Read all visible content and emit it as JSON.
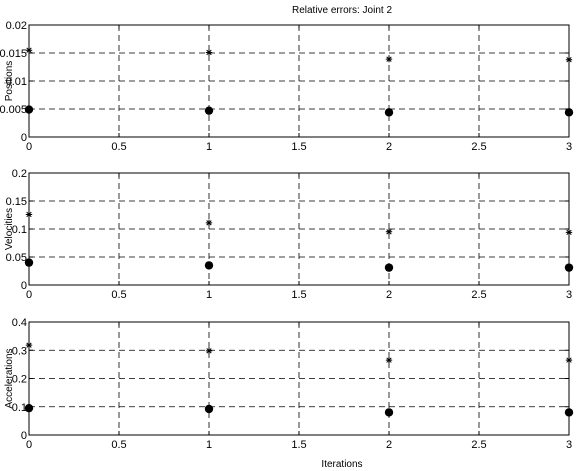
{
  "figure": {
    "title": "Relative errors: Joint 2",
    "xlabel": "Iterations"
  },
  "chart_data": [
    {
      "type": "scatter",
      "title": "Relative errors: Joint 2",
      "xlabel": "",
      "ylabel": "Positions",
      "xlim": [
        0,
        3
      ],
      "ylim": [
        0,
        0.02
      ],
      "x_ticks": [
        0,
        0.5,
        1,
        1.5,
        2,
        2.5,
        3
      ],
      "x_tick_labels": [
        "0",
        "0.5",
        "1",
        "1.5",
        "2",
        "2.5",
        "3"
      ],
      "y_ticks": [
        0,
        0.005,
        0.01,
        0.015,
        0.02
      ],
      "y_tick_labels": [
        "0",
        "0.005",
        "0.01",
        "0.015",
        "0.02"
      ],
      "grid": true,
      "series": [
        {
          "marker": "star",
          "color": "#000000",
          "x": [
            0,
            1,
            2,
            3
          ],
          "y": [
            0.0155,
            0.0151,
            0.0139,
            0.0138
          ]
        },
        {
          "marker": "dot",
          "color": "#000000",
          "x": [
            0,
            1,
            2,
            3
          ],
          "y": [
            0.0049,
            0.0047,
            0.0044,
            0.0044
          ]
        }
      ]
    },
    {
      "type": "scatter",
      "title": "",
      "xlabel": "",
      "ylabel": "Velocities",
      "xlim": [
        0,
        3
      ],
      "ylim": [
        0,
        0.2
      ],
      "x_ticks": [
        0,
        0.5,
        1,
        1.5,
        2,
        2.5,
        3
      ],
      "x_tick_labels": [
        "0",
        "0.5",
        "1",
        "1.5",
        "2",
        "2.5",
        "3"
      ],
      "y_ticks": [
        0,
        0.05,
        0.1,
        0.15,
        0.2
      ],
      "y_tick_labels": [
        "0",
        "0.05",
        "0.1",
        "0.15",
        "0.2"
      ],
      "grid": true,
      "series": [
        {
          "marker": "star",
          "color": "#000000",
          "x": [
            0,
            1,
            2,
            3
          ],
          "y": [
            0.126,
            0.111,
            0.095,
            0.094
          ]
        },
        {
          "marker": "dot",
          "color": "#000000",
          "x": [
            0,
            1,
            2,
            3
          ],
          "y": [
            0.04,
            0.035,
            0.031,
            0.031
          ]
        }
      ]
    },
    {
      "type": "scatter",
      "title": "",
      "xlabel": "Iterations",
      "ylabel": "Accelerations",
      "xlim": [
        0,
        3
      ],
      "ylim": [
        0,
        0.4
      ],
      "x_ticks": [
        0,
        0.5,
        1,
        1.5,
        2,
        2.5,
        3
      ],
      "x_tick_labels": [
        "0",
        "0.5",
        "1",
        "1.5",
        "2",
        "2.5",
        "3"
      ],
      "y_ticks": [
        0,
        0.1,
        0.2,
        0.3,
        0.4
      ],
      "y_tick_labels": [
        "0",
        "0.1",
        "0.2",
        "0.3",
        "0.4"
      ],
      "grid": true,
      "series": [
        {
          "marker": "star",
          "color": "#000000",
          "x": [
            0,
            1,
            2,
            3
          ],
          "y": [
            0.318,
            0.298,
            0.265,
            0.265
          ]
        },
        {
          "marker": "dot",
          "color": "#000000",
          "x": [
            0,
            1,
            2,
            3
          ],
          "y": [
            0.095,
            0.092,
            0.08,
            0.08
          ]
        }
      ]
    }
  ]
}
